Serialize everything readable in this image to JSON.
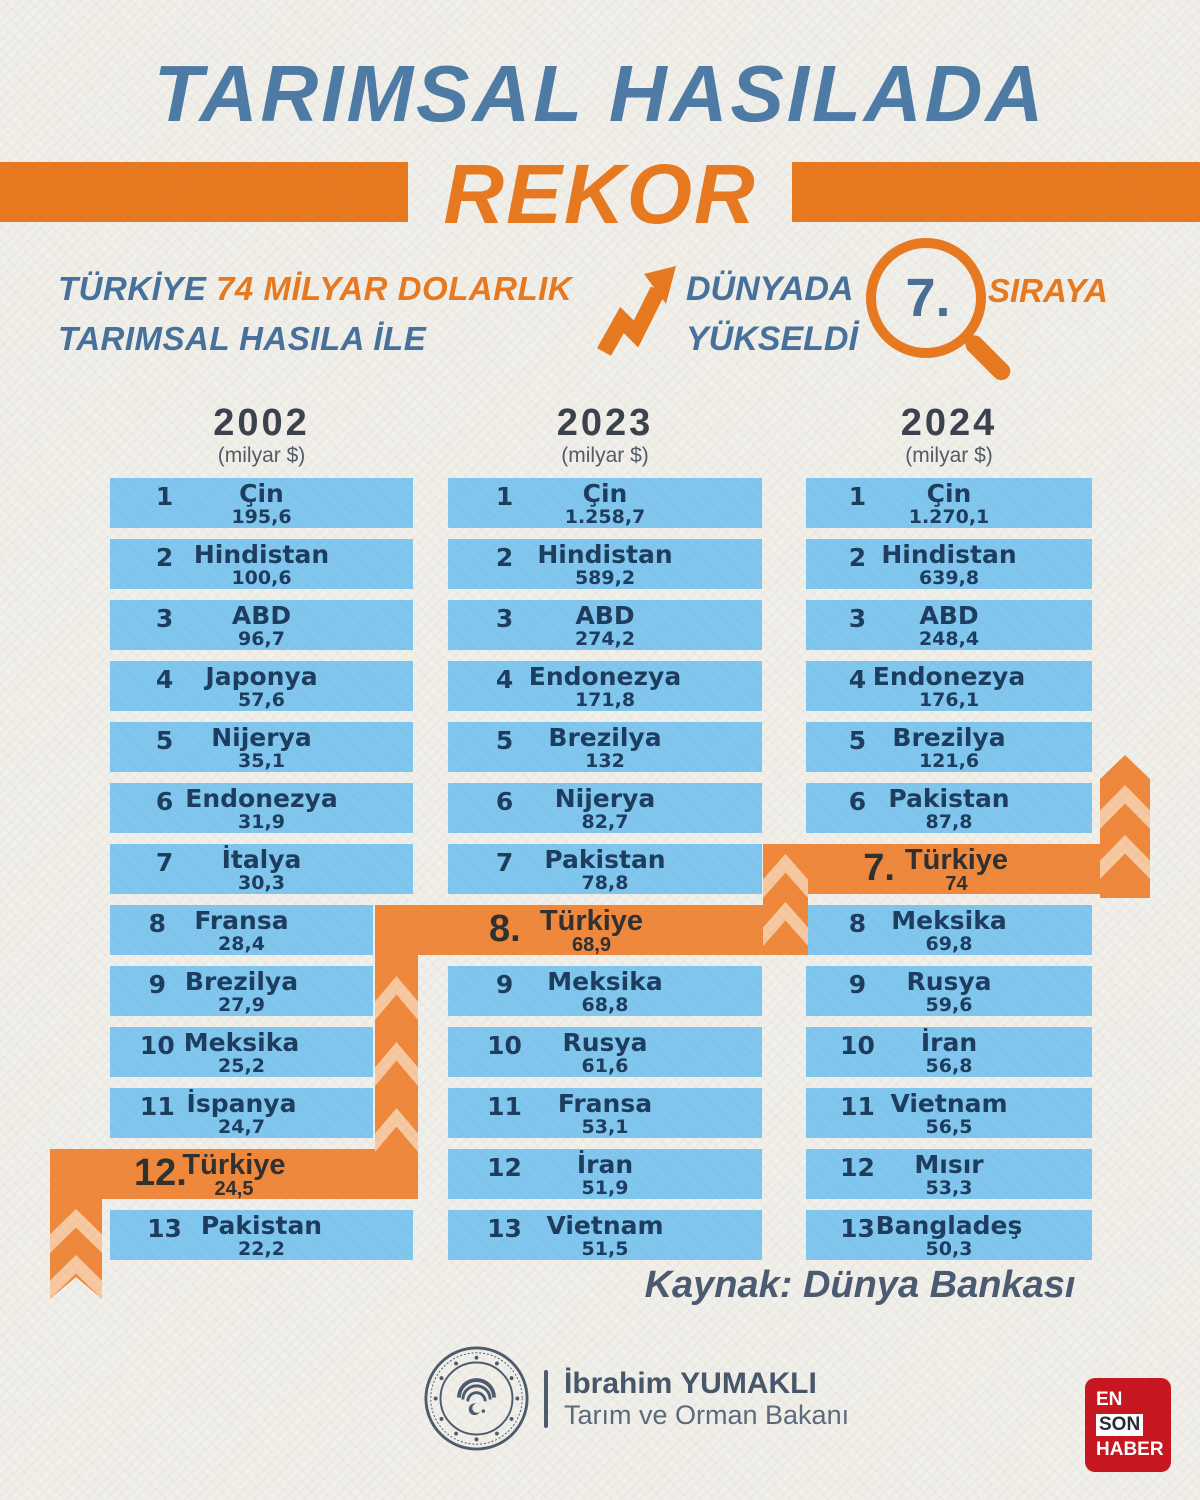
{
  "header": {
    "title": "TARIMSAL HASILADA",
    "highlight": "REKOR"
  },
  "subtitle": {
    "lead": "TÜRKİYE",
    "amount": "74 MİLYAR DOLARLIK",
    "line2": "TARIMSAL HASILA İLE",
    "world_line1": "DÜNYADA",
    "world_line2": "YÜKSELDİ",
    "rank_badge": "7.",
    "tail": "SIRAYA"
  },
  "chart_data": {
    "type": "table",
    "title": "TARIMSAL HASILADA REKOR",
    "unit": "milyar $",
    "source": "Dünya Bankası",
    "columns": [
      {
        "year": "2002",
        "unit": "(milyar $)",
        "rows": [
          {
            "rank": "1",
            "country": "Çin",
            "value": "195,6"
          },
          {
            "rank": "2",
            "country": "Hindistan",
            "value": "100,6"
          },
          {
            "rank": "3",
            "country": "ABD",
            "value": "96,7"
          },
          {
            "rank": "4",
            "country": "Japonya",
            "value": "57,6"
          },
          {
            "rank": "5",
            "country": "Nijerya",
            "value": "35,1"
          },
          {
            "rank": "6",
            "country": "Endonezya",
            "value": "31,9"
          },
          {
            "rank": "7",
            "country": "İtalya",
            "value": "30,3"
          },
          {
            "rank": "8",
            "country": "Fransa",
            "value": "28,4",
            "short": true
          },
          {
            "rank": "9",
            "country": "Brezilya",
            "value": "27,9",
            "short": true
          },
          {
            "rank": "10",
            "country": "Meksika",
            "value": "25,2",
            "short": true
          },
          {
            "rank": "11",
            "country": "İspanya",
            "value": "24,7",
            "short": true
          },
          {
            "rank": "12.",
            "country": "Türkiye",
            "value": "24,5",
            "highlight": true
          },
          {
            "rank": "13",
            "country": "Pakistan",
            "value": "22,2"
          }
        ]
      },
      {
        "year": "2023",
        "unit": "(milyar $)",
        "rows": [
          {
            "rank": "1",
            "country": "Çin",
            "value": "1.258,7"
          },
          {
            "rank": "2",
            "country": "Hindistan",
            "value": "589,2"
          },
          {
            "rank": "3",
            "country": "ABD",
            "value": "274,2"
          },
          {
            "rank": "4",
            "country": "Endonezya",
            "value": "171,8"
          },
          {
            "rank": "5",
            "country": "Brezilya",
            "value": "132"
          },
          {
            "rank": "6",
            "country": "Nijerya",
            "value": "82,7"
          },
          {
            "rank": "7",
            "country": "Pakistan",
            "value": "78,8"
          },
          {
            "rank": "8.",
            "country": "Türkiye",
            "value": "68,9",
            "highlight": true
          },
          {
            "rank": "9",
            "country": "Meksika",
            "value": "68,8"
          },
          {
            "rank": "10",
            "country": "Rusya",
            "value": "61,6"
          },
          {
            "rank": "11",
            "country": "Fransa",
            "value": "53,1"
          },
          {
            "rank": "12",
            "country": "İran",
            "value": "51,9"
          },
          {
            "rank": "13",
            "country": "Vietnam",
            "value": "51,5"
          }
        ]
      },
      {
        "year": "2024",
        "unit": "(milyar $)",
        "rows": [
          {
            "rank": "1",
            "country": "Çin",
            "value": "1.270,1"
          },
          {
            "rank": "2",
            "country": "Hindistan",
            "value": "639,8"
          },
          {
            "rank": "3",
            "country": "ABD",
            "value": "248,4"
          },
          {
            "rank": "4",
            "country": "Endonezya",
            "value": "176,1"
          },
          {
            "rank": "5",
            "country": "Brezilya",
            "value": "121,6"
          },
          {
            "rank": "6",
            "country": "Pakistan",
            "value": "87,8"
          },
          {
            "rank": "7.",
            "country": "Türkiye",
            "value": "74",
            "highlight": true
          },
          {
            "rank": "8",
            "country": "Meksika",
            "value": "69,8"
          },
          {
            "rank": "9",
            "country": "Rusya",
            "value": "59,6"
          },
          {
            "rank": "10",
            "country": "İran",
            "value": "56,8"
          },
          {
            "rank": "11",
            "country": "Vietnam",
            "value": "56,5"
          },
          {
            "rank": "12",
            "country": "Mısır",
            "value": "53,3"
          },
          {
            "rank": "13",
            "country": "Bangladeş",
            "value": "50,3"
          }
        ]
      }
    ]
  },
  "source_label": "Kaynak: Dünya Bankası",
  "footer": {
    "minister_name": "İbrahim YUMAKLI",
    "minister_title": "Tarım ve Orman Bakanı",
    "brand_line1": "EN",
    "brand_line2": "SON",
    "brand_line3": "HABER"
  },
  "colors": {
    "accent_orange": "#e8791f",
    "row_orange": "#f0883c",
    "chevron_light": "#f8c9a1",
    "row_blue": "#80c7f0",
    "title_blue": "#4d7ba6",
    "text_navy": "#1c3c5e",
    "slate": "#4c5b6d",
    "brand_red": "#c8151f"
  }
}
